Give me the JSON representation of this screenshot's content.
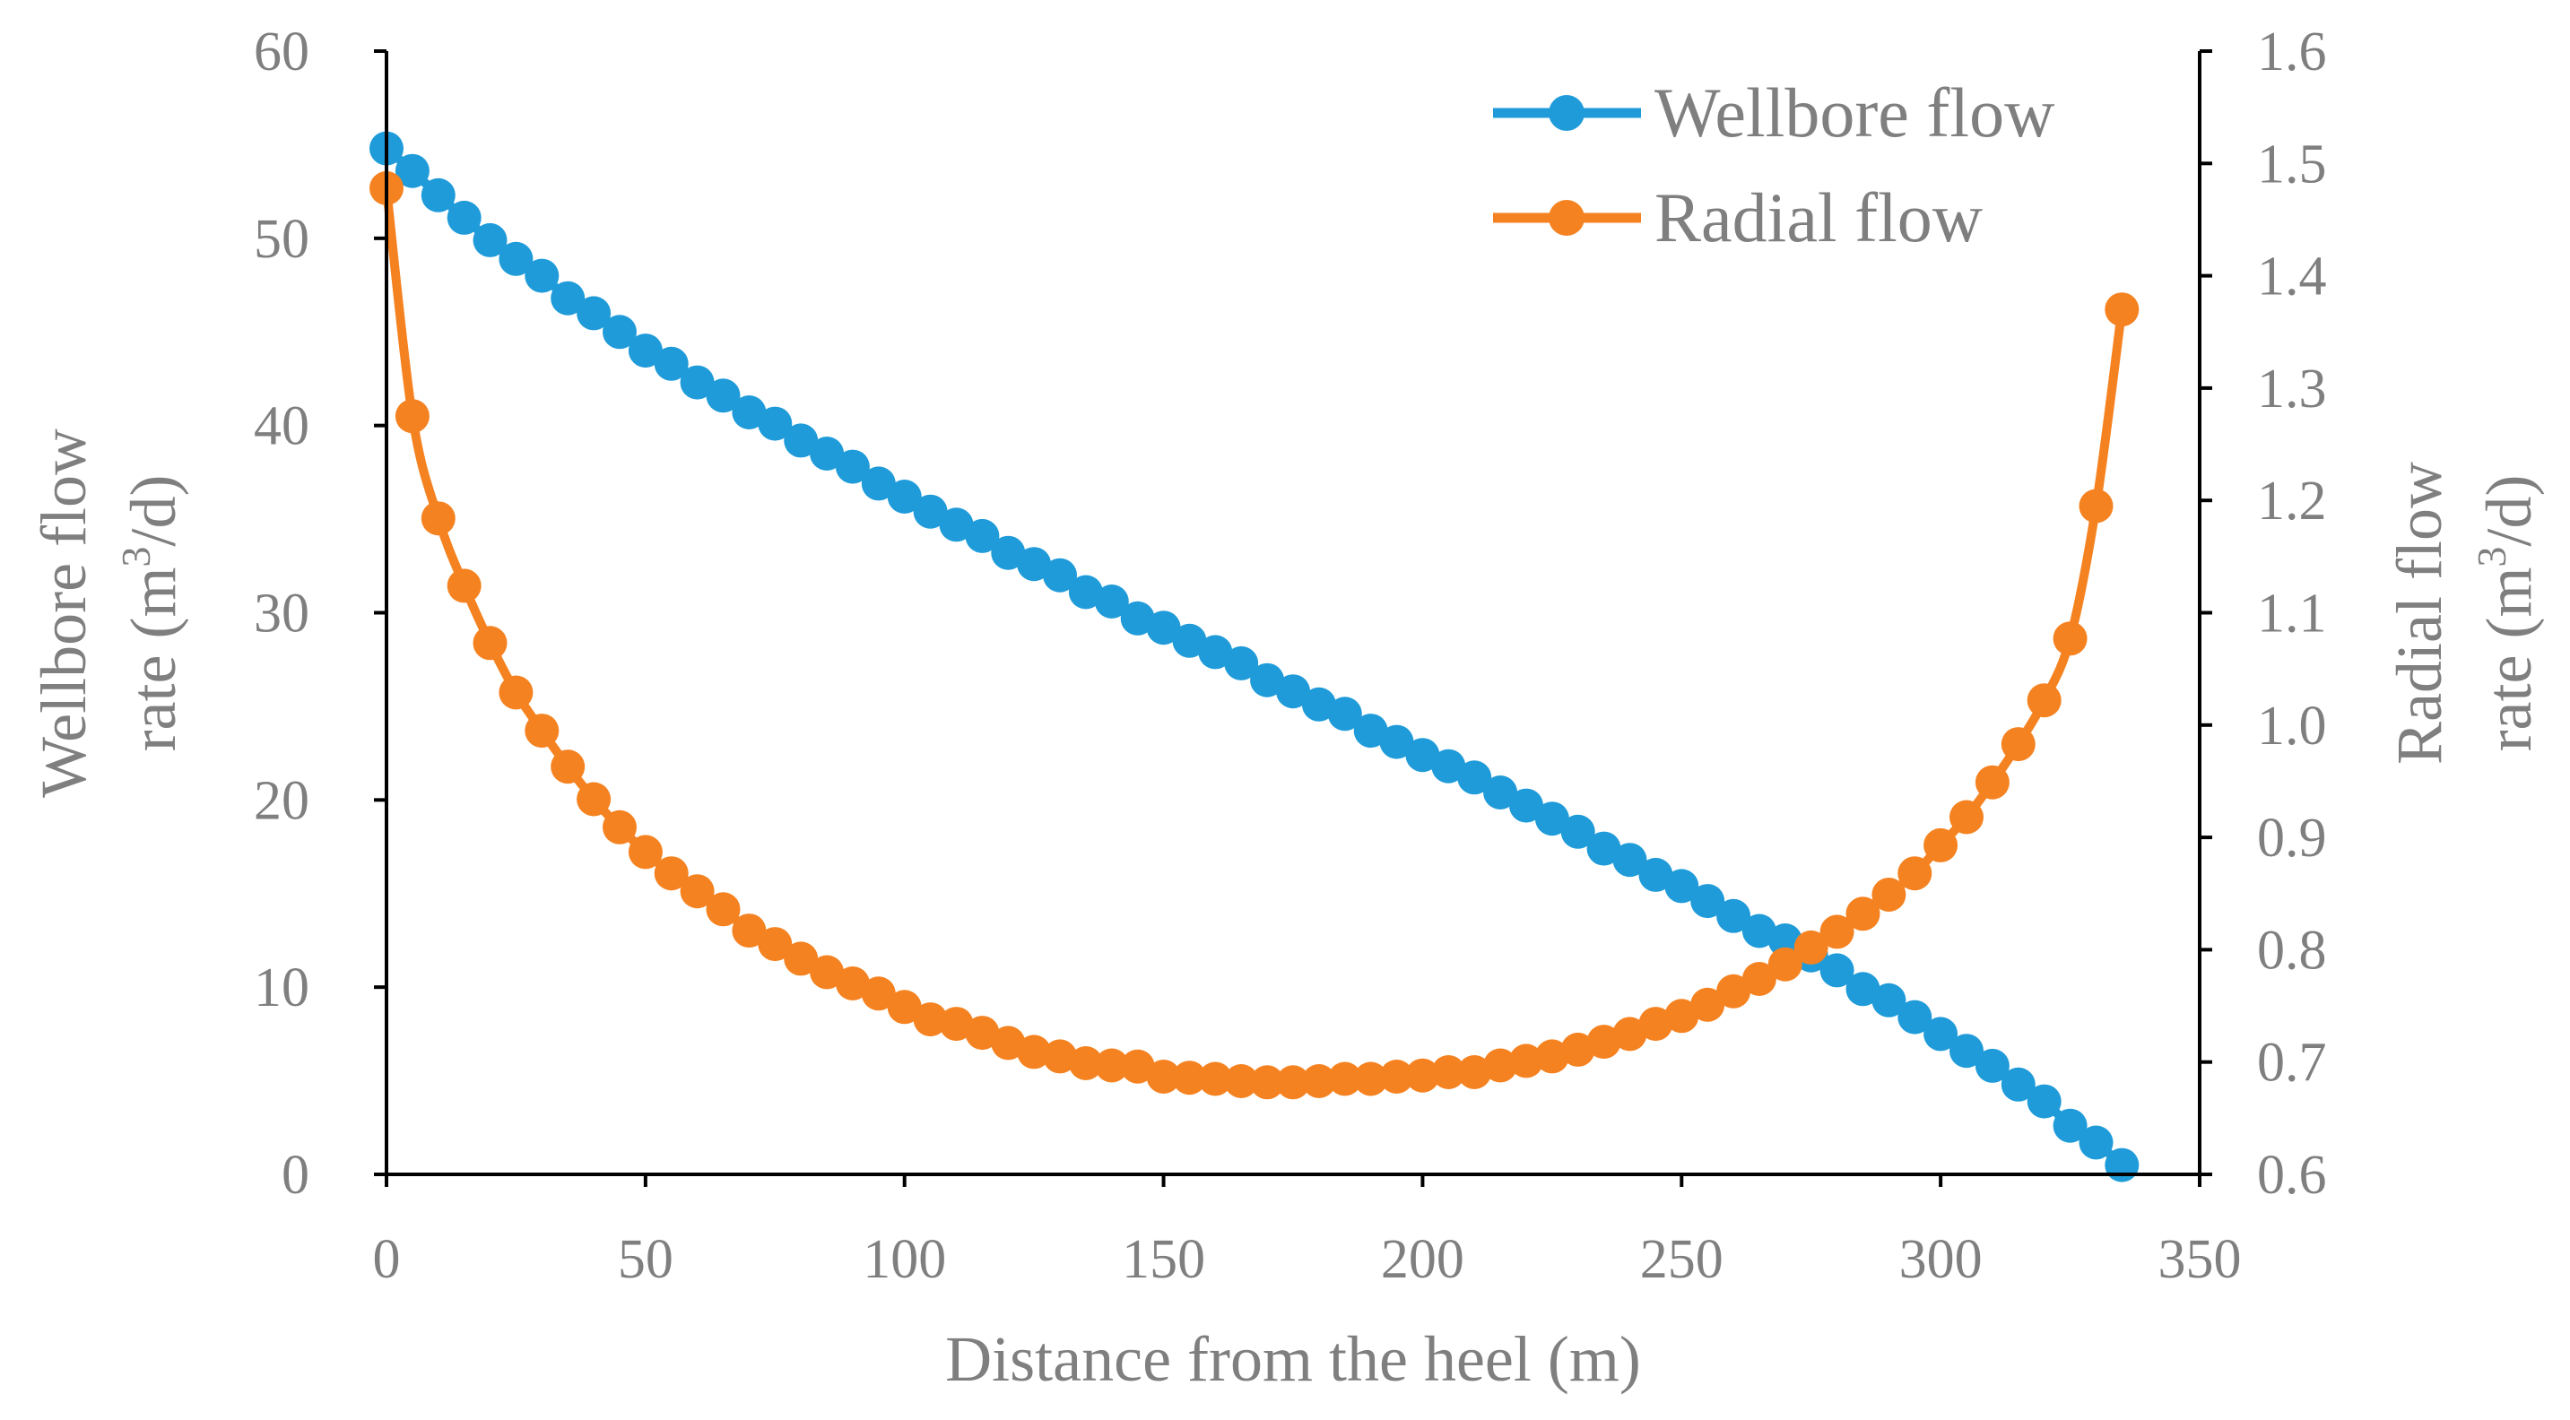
{
  "chart_data": {
    "type": "line",
    "title": "",
    "xlabel": "Distance from the heel (m)",
    "ylabel_left": {
      "line1": "Wellbore flow",
      "line2_prefix": "rate (m",
      "line2_sup": "3",
      "line2_suffix": "/d)"
    },
    "ylabel_right": {
      "line1": "Radial flow",
      "line2_prefix": "rate (m",
      "line2_sup": "3",
      "line2_suffix": "/d)"
    },
    "xlim": [
      0,
      350
    ],
    "ylim_left": [
      0,
      60
    ],
    "ylim_right": [
      0.6,
      1.6
    ],
    "x_ticks": [
      "0",
      "50",
      "100",
      "150",
      "200",
      "250",
      "300",
      "350"
    ],
    "y_left_ticks": [
      "0",
      "10",
      "20",
      "30",
      "40",
      "50",
      "60"
    ],
    "y_right_ticks": [
      "0.6",
      "0.7",
      "0.8",
      "0.9",
      "1.0",
      "1.1",
      "1.2",
      "1.3",
      "1.4",
      "1.5",
      "1.6"
    ],
    "legend_position": "top-right",
    "series": [
      {
        "name": "Wellbore flow",
        "axis": "left",
        "color": "#1f9bd9",
        "x": [
          0,
          5,
          10,
          15,
          20,
          25,
          30,
          35,
          40,
          45,
          50,
          55,
          60,
          65,
          70,
          75,
          80,
          85,
          90,
          95,
          100,
          105,
          110,
          115,
          120,
          125,
          130,
          135,
          140,
          145,
          150,
          155,
          160,
          165,
          170,
          175,
          180,
          185,
          190,
          195,
          200,
          205,
          210,
          215,
          220,
          225,
          230,
          235,
          240,
          245,
          250,
          255,
          260,
          265,
          270,
          275,
          280,
          285,
          290,
          295,
          300,
          305,
          310,
          315,
          320,
          325,
          330,
          335
        ],
        "values": [
          54.8,
          53.6,
          52.3,
          51.1,
          49.9,
          48.9,
          48.0,
          46.8,
          46.0,
          45.0,
          44.0,
          43.3,
          42.3,
          41.6,
          40.7,
          40.1,
          39.2,
          38.5,
          37.8,
          36.9,
          36.2,
          35.4,
          34.7,
          34.1,
          33.2,
          32.6,
          32.0,
          31.1,
          30.6,
          29.7,
          29.2,
          28.5,
          27.9,
          27.3,
          26.4,
          25.8,
          25.1,
          24.6,
          23.7,
          23.1,
          22.4,
          21.8,
          21.2,
          20.4,
          19.7,
          19.0,
          18.3,
          17.4,
          16.8,
          16.0,
          15.4,
          14.6,
          13.8,
          13.0,
          12.5,
          11.7,
          10.9,
          9.9,
          9.3,
          8.4,
          7.5,
          6.6,
          5.8,
          4.8,
          3.9,
          2.6,
          1.7,
          0.5
        ]
      },
      {
        "name": "Radial flow",
        "axis": "right",
        "color": "#f58220",
        "x": [
          0,
          5,
          10,
          15,
          20,
          25,
          30,
          35,
          40,
          45,
          50,
          55,
          60,
          65,
          70,
          75,
          80,
          85,
          90,
          95,
          100,
          105,
          110,
          115,
          120,
          125,
          130,
          135,
          140,
          145,
          150,
          155,
          160,
          165,
          170,
          175,
          180,
          185,
          190,
          195,
          200,
          205,
          210,
          215,
          220,
          225,
          230,
          235,
          240,
          245,
          250,
          255,
          260,
          265,
          270,
          275,
          280,
          285,
          290,
          295,
          300,
          305,
          310,
          315,
          320,
          325,
          330,
          335
        ],
        "values": [
          1.478,
          1.275,
          1.184,
          1.124,
          1.073,
          1.029,
          0.995,
          0.963,
          0.934,
          0.909,
          0.887,
          0.868,
          0.852,
          0.836,
          0.817,
          0.805,
          0.792,
          0.78,
          0.77,
          0.761,
          0.749,
          0.738,
          0.734,
          0.726,
          0.717,
          0.709,
          0.705,
          0.699,
          0.697,
          0.696,
          0.687,
          0.686,
          0.685,
          0.683,
          0.682,
          0.682,
          0.683,
          0.685,
          0.685,
          0.687,
          0.688,
          0.691,
          0.691,
          0.697,
          0.701,
          0.705,
          0.711,
          0.718,
          0.725,
          0.734,
          0.741,
          0.751,
          0.763,
          0.774,
          0.787,
          0.802,
          0.816,
          0.832,
          0.849,
          0.868,
          0.893,
          0.918,
          0.949,
          0.983,
          1.022,
          1.077,
          1.195,
          1.37
        ]
      }
    ]
  }
}
